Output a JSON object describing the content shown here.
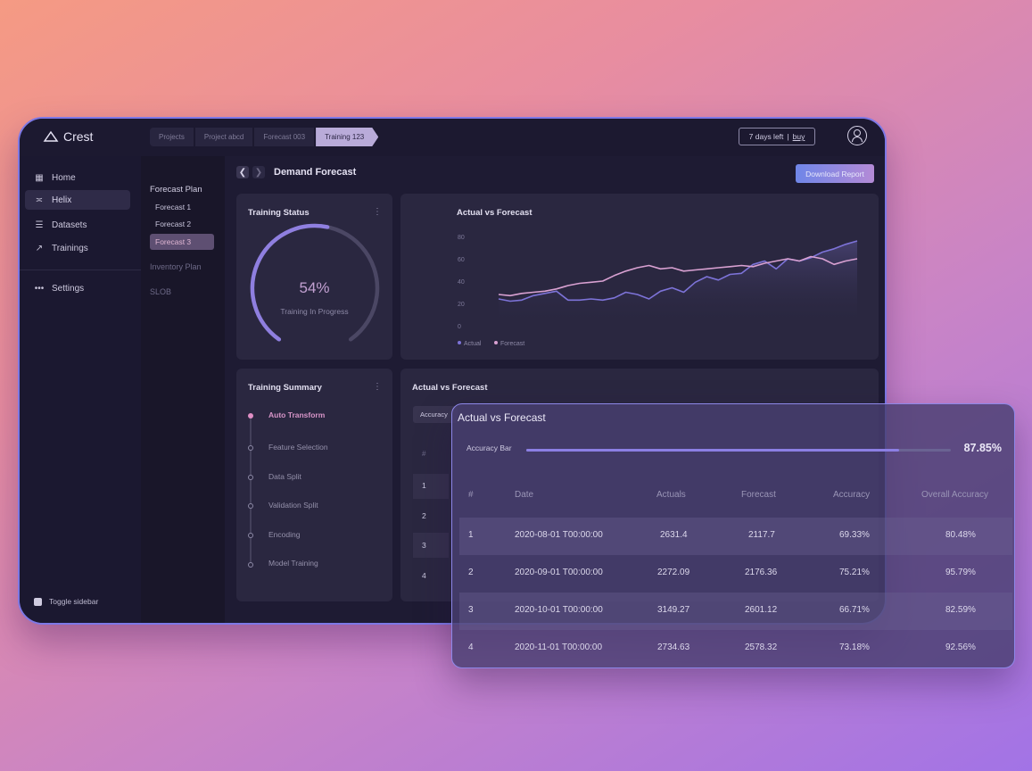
{
  "app": {
    "name": "Crest"
  },
  "breadcrumbs": [
    "Projects",
    "Project abcd",
    "Forecast 003",
    "Training 123"
  ],
  "trial": {
    "text": "7 days left",
    "link": "buy"
  },
  "sidebar": {
    "items": [
      {
        "label": "Home",
        "icon": "grid-icon"
      },
      {
        "label": "Helix",
        "icon": "helix-icon",
        "selected": true
      },
      {
        "label": "Datasets",
        "icon": "database-icon"
      },
      {
        "label": "Trainings",
        "icon": "trend-icon"
      },
      {
        "label": "Settings",
        "icon": "more-icon"
      }
    ],
    "toggle_label": "Toggle sidebar"
  },
  "subnav": {
    "heading": "Forecast Plan",
    "items": [
      "Forecast 1",
      "Forecast 2",
      "Forecast 3"
    ],
    "selected": "Forecast 3",
    "other": [
      "Inventory Plan",
      "SLOB"
    ]
  },
  "main": {
    "title": "Demand Forecast",
    "download_label": "Download Report"
  },
  "training_status": {
    "title": "Training Status",
    "percent_text": "54%",
    "progress": 0.54,
    "subtitle": "Training In Progress"
  },
  "chart_data": {
    "type": "area",
    "title": "Actual vs Forecast",
    "yticks": [
      "80",
      "60",
      "40",
      "20",
      "0"
    ],
    "ylim": [
      0,
      80
    ],
    "grid": false,
    "legend": "bottom-left",
    "series": [
      {
        "name": "Actual",
        "color": "#7d73d8",
        "values": [
          24,
          22,
          23,
          27,
          29,
          31,
          23,
          23,
          24,
          23,
          25,
          30,
          28,
          24,
          31,
          34,
          30,
          39,
          44,
          41,
          46,
          47,
          55,
          58,
          51,
          60,
          58,
          61,
          66,
          69,
          73,
          76
        ]
      },
      {
        "name": "Forecast",
        "color": "#d9a1d2",
        "values": [
          28,
          27,
          29,
          30,
          31,
          33,
          36,
          38,
          39,
          40,
          45,
          49,
          52,
          54,
          51,
          52,
          49,
          50,
          51,
          52,
          53,
          54,
          53,
          56,
          58,
          60,
          58,
          62,
          60,
          55,
          58,
          60
        ]
      }
    ]
  },
  "training_summary": {
    "title": "Training Summary",
    "steps": [
      "Auto Transform",
      "Feature Selection",
      "Data Split",
      "Validation Split",
      "Encoding",
      "Model Training"
    ],
    "active": "Auto Transform"
  },
  "bg_table": {
    "title": "Actual vs Forecast",
    "tab": "Accuracy",
    "rows": [
      "1",
      "2",
      "3",
      "4"
    ]
  },
  "overlay": {
    "title": "Actual vs Forecast",
    "accuracy_label": "Accuracy Bar",
    "accuracy_text": "87.85%",
    "accuracy_value": 0.8785,
    "columns": [
      "#",
      "Date",
      "Actuals",
      "Forecast",
      "Accuracy",
      "Overall Accuracy"
    ],
    "rows": [
      {
        "n": "1",
        "date": "2020-08-01 T00:00:00",
        "actual": "2631.4",
        "forecast": "2117.7",
        "accuracy": "69.33%",
        "overall": "80.48%"
      },
      {
        "n": "2",
        "date": "2020-09-01 T00:00:00",
        "actual": "2272.09",
        "forecast": "2176.36",
        "accuracy": "75.21%",
        "overall": "95.79%"
      },
      {
        "n": "3",
        "date": "2020-10-01 T00:00:00",
        "actual": "3149.27",
        "forecast": "2601.12",
        "accuracy": "66.71%",
        "overall": "82.59%"
      },
      {
        "n": "4",
        "date": "2020-11-01 T00:00:00",
        "actual": "2734.63",
        "forecast": "2578.32",
        "accuracy": "73.18%",
        "overall": "92.56%"
      }
    ]
  }
}
